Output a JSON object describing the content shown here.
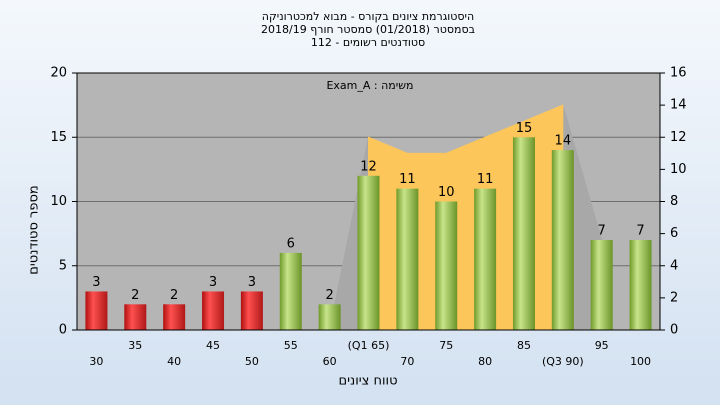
{
  "chart_data": {
    "type": "bar",
    "title": [
      "היסטוגרמת ציונים בקורס - מבוא למכטרוניקה",
      "בסמסטר (01/2018) סמסטר חורף 2018/19",
      "סטודנטים רשומים - 112"
    ],
    "annotation": "משימה : Exam_A",
    "ylabel": "מספר סטודנטים",
    "xlabel": "טווח ציונים",
    "categories": [
      "30",
      "35",
      "40",
      "45",
      "50",
      "55",
      "60",
      "(Q1 65)",
      "70",
      "75",
      "80",
      "85",
      "(Q3 90)",
      "95",
      "100"
    ],
    "values": [
      3,
      2,
      2,
      3,
      3,
      6,
      2,
      12,
      11,
      10,
      11,
      15,
      14,
      7,
      7
    ],
    "colors": [
      "red",
      "red",
      "red",
      "red",
      "red",
      "green",
      "green",
      "green",
      "green",
      "green",
      "green",
      "green",
      "green",
      "green",
      "green"
    ],
    "area_series": [
      {
        "color": "#a8a8a8",
        "axis": "y2",
        "values": [
          null,
          null,
          null,
          null,
          null,
          null,
          0,
          12,
          null,
          null,
          null,
          null,
          14,
          5.6,
          null
        ]
      },
      {
        "color": "#fcc65a",
        "axis": "y2",
        "values": [
          null,
          null,
          null,
          null,
          null,
          null,
          null,
          12,
          11,
          11,
          12,
          13,
          14,
          null,
          null
        ]
      }
    ],
    "ylim": [
      0,
      20
    ],
    "yticks": [
      0,
      5,
      10,
      15,
      20
    ],
    "y2lim": [
      0,
      16
    ],
    "y2ticks": [
      0,
      2,
      4,
      6,
      8,
      10,
      12,
      14,
      16
    ],
    "grid": true
  }
}
